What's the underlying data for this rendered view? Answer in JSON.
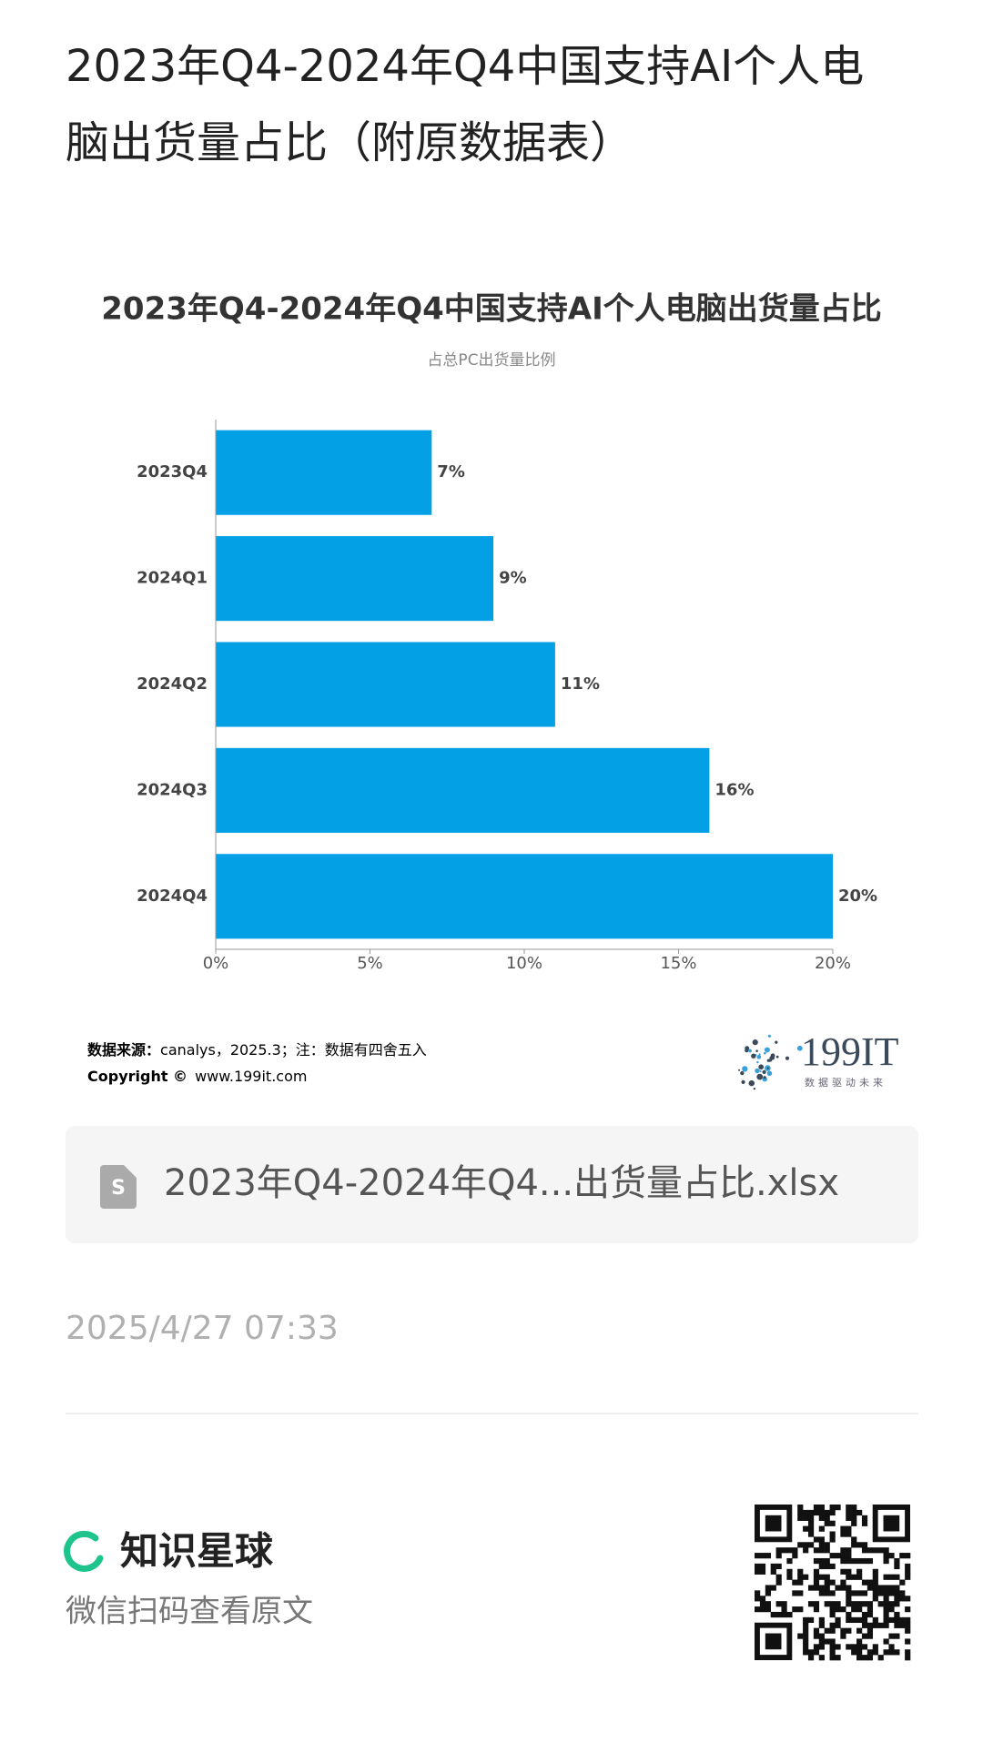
{
  "header": {
    "title_line1": "2023年Q4-2024年Q4中国支持AI个人电",
    "title_line2": "脑出货量占比（附原数据表）"
  },
  "chart_data": {
    "type": "bar",
    "orientation": "horizontal",
    "title": "2023年Q4-2024年Q4中国支持AI个人电脑出货量占比",
    "subtitle": "占总PC出货量比例",
    "categories": [
      "2023Q4",
      "2024Q1",
      "2024Q2",
      "2024Q3",
      "2024Q4"
    ],
    "values": [
      7,
      9,
      11,
      16,
      20
    ],
    "value_labels": [
      "7%",
      "9%",
      "11%",
      "16%",
      "20%"
    ],
    "color": "#03a0e6",
    "xlim": [
      0,
      20
    ],
    "xticks": [
      {
        "value": 0,
        "label": "0%"
      },
      {
        "value": 5,
        "label": "5%"
      },
      {
        "value": 10,
        "label": "10%"
      },
      {
        "value": 15,
        "label": "15%"
      },
      {
        "value": 20,
        "label": "20%"
      }
    ]
  },
  "source": {
    "label": "数据来源：",
    "text": "canalys，2025.3；注：数据有四舍五入",
    "copyright_label": "Copyright ©",
    "copyright_text": "www.199it.com"
  },
  "logo": {
    "name": "199IT",
    "slogan": "数据驱动未来"
  },
  "file": {
    "name": "2023年Q4-2024年Q4...出货量占比.xlsx"
  },
  "date": "2025/4/27 07:33",
  "footer": {
    "brand": "知识星球",
    "caption": "微信扫码查看原文"
  }
}
